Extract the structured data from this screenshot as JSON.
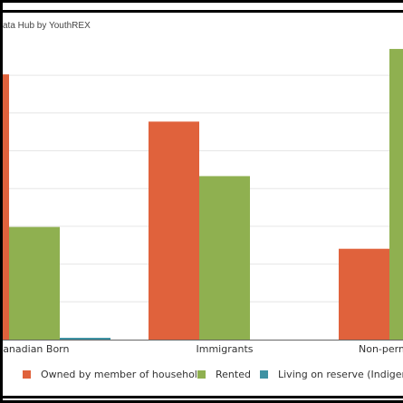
{
  "source": "ata Hub by YouthREX",
  "colors": {
    "owned": "#e0623c",
    "rented": "#8fb050",
    "reserve": "#3f92a3",
    "grid": "#e6e6e6",
    "axis": "#666666"
  },
  "legend": {
    "owned": "Owned by member of household",
    "rented": "Rented",
    "reserve": "Living on reserve (Indigenous"
  },
  "chart_data": {
    "type": "bar",
    "categories": [
      "Canadian Born",
      "Immigrants",
      "Non-perm"
    ],
    "series": [
      {
        "name": "Owned by member of household",
        "values": [
          73,
          60,
          25
        ]
      },
      {
        "name": "Rented",
        "values": [
          31,
          45,
          80
        ]
      },
      {
        "name": "Living on reserve (Indigenous",
        "values": [
          0.5,
          0,
          0
        ]
      }
    ],
    "ylim": [
      0,
      84
    ],
    "grid": true,
    "legend_position": "bottom"
  }
}
